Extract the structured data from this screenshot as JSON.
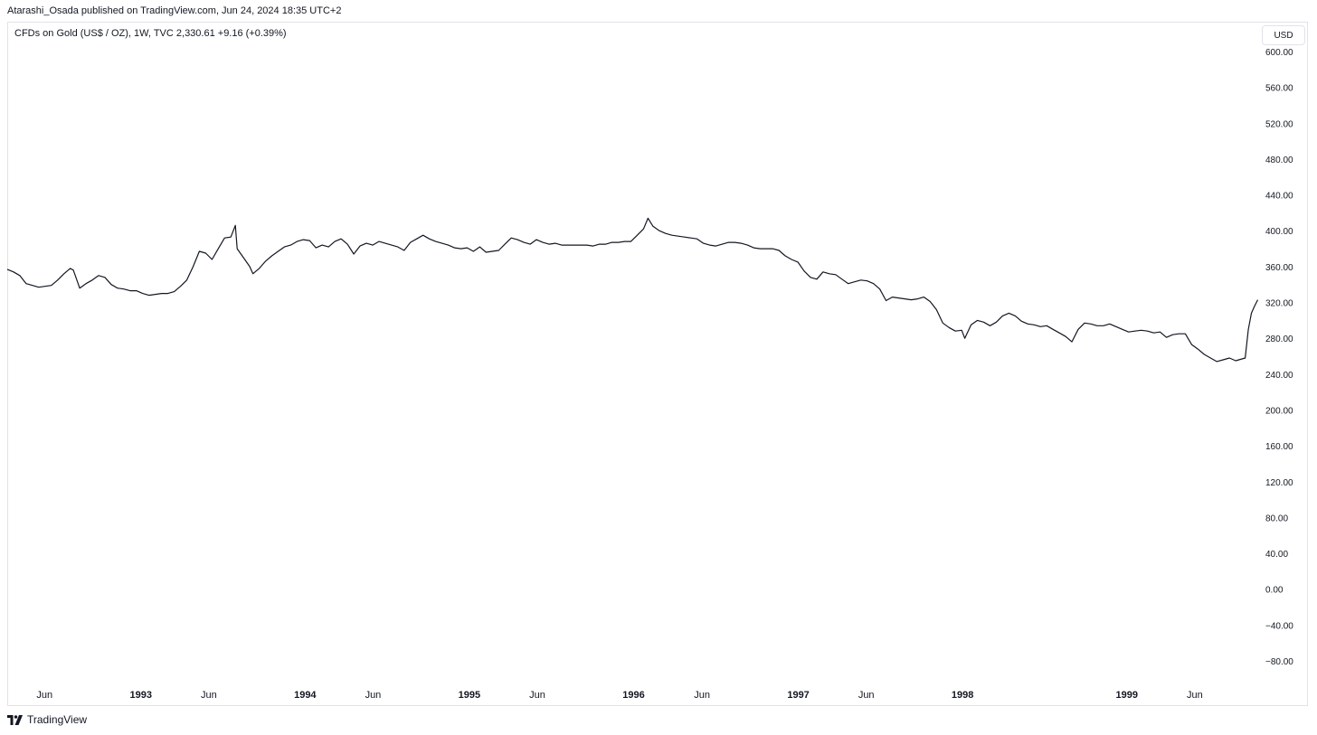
{
  "header": {
    "published_text": "Atarashi_Osada published on TradingView.com, Jun 24, 2024 18:35 UTC+2"
  },
  "legend": {
    "text": "CFDs on Gold (US$ / OZ), 1W, TVC  2,330.61  +9.16 (+0.39%)"
  },
  "price_scale": {
    "currency_label": "USD"
  },
  "footer": {
    "brand": "TradingView",
    "logo_icon": "tradingview-logo-icon"
  },
  "colors": {
    "line": "#131722",
    "axis_text": "#131722",
    "border": "#e0e3eb"
  },
  "chart_data": {
    "type": "line",
    "title": "CFDs on Gold (US$ / OZ), 1W, TVC",
    "xlabel": "",
    "ylabel": "",
    "ylim": [
      -80,
      600
    ],
    "xlim": [
      "1992-03-10",
      "1999-10-20"
    ],
    "grid": false,
    "y_ticks": [
      "600.00",
      "560.00",
      "520.00",
      "480.00",
      "440.00",
      "400.00",
      "360.00",
      "320.00",
      "280.00",
      "240.00",
      "200.00",
      "160.00",
      "120.00",
      "80.00",
      "40.00",
      "0.00",
      "−40.00",
      "−80.00"
    ],
    "x_ticks": [
      {
        "label": "Jun",
        "date": "1992-06-01"
      },
      {
        "label": "1993",
        "date": "1993-01-01"
      },
      {
        "label": "Jun",
        "date": "1993-06-01"
      },
      {
        "label": "1994",
        "date": "1994-01-01"
      },
      {
        "label": "Jun",
        "date": "1994-06-01"
      },
      {
        "label": "1995",
        "date": "1995-01-01"
      },
      {
        "label": "Jun",
        "date": "1995-06-01"
      },
      {
        "label": "1996",
        "date": "1996-01-01"
      },
      {
        "label": "Jun",
        "date": "1996-06-01"
      },
      {
        "label": "1997",
        "date": "1997-01-01"
      },
      {
        "label": "Jun",
        "date": "1997-06-01"
      },
      {
        "label": "1998",
        "date": "1998-01-01"
      },
      {
        "label": "1999",
        "date": "1999-01-01"
      },
      {
        "label": "Jun",
        "date": "1999-06-01"
      }
    ],
    "series": [
      {
        "values": [
          [
            "1992-03-10",
            357
          ],
          [
            "1992-03-24",
            354
          ],
          [
            "1992-04-07",
            350
          ],
          [
            "1992-04-21",
            341
          ],
          [
            "1992-05-05",
            339
          ],
          [
            "1992-05-19",
            337
          ],
          [
            "1992-06-02",
            338
          ],
          [
            "1992-06-16",
            339
          ],
          [
            "1992-06-30",
            345
          ],
          [
            "1992-07-14",
            352
          ],
          [
            "1992-07-28",
            358
          ],
          [
            "1992-08-04",
            356
          ],
          [
            "1992-08-18",
            336
          ],
          [
            "1992-09-01",
            341
          ],
          [
            "1992-09-15",
            345
          ],
          [
            "1992-09-29",
            350
          ],
          [
            "1992-10-13",
            348
          ],
          [
            "1992-10-27",
            340
          ],
          [
            "1992-11-10",
            336
          ],
          [
            "1992-11-24",
            335
          ],
          [
            "1992-12-08",
            333
          ],
          [
            "1992-12-22",
            333
          ],
          [
            "1993-01-05",
            330
          ],
          [
            "1993-01-19",
            328
          ],
          [
            "1993-02-02",
            329
          ],
          [
            "1993-02-16",
            330
          ],
          [
            "1993-03-02",
            330
          ],
          [
            "1993-03-16",
            332
          ],
          [
            "1993-03-30",
            338
          ],
          [
            "1993-04-13",
            345
          ],
          [
            "1993-04-27",
            360
          ],
          [
            "1993-05-11",
            377
          ],
          [
            "1993-05-25",
            375
          ],
          [
            "1993-06-08",
            368
          ],
          [
            "1993-06-22",
            380
          ],
          [
            "1993-07-06",
            392
          ],
          [
            "1993-07-20",
            393
          ],
          [
            "1993-07-30",
            406
          ],
          [
            "1993-08-03",
            380
          ],
          [
            "1993-08-17",
            370
          ],
          [
            "1993-08-31",
            360
          ],
          [
            "1993-09-07",
            352
          ],
          [
            "1993-09-21",
            358
          ],
          [
            "1993-10-05",
            366
          ],
          [
            "1993-10-19",
            372
          ],
          [
            "1993-11-02",
            377
          ],
          [
            "1993-11-16",
            382
          ],
          [
            "1993-11-30",
            384
          ],
          [
            "1993-12-14",
            388
          ],
          [
            "1993-12-28",
            390
          ],
          [
            "1994-01-11",
            389
          ],
          [
            "1994-01-25",
            381
          ],
          [
            "1994-02-08",
            384
          ],
          [
            "1994-02-22",
            382
          ],
          [
            "1994-03-08",
            388
          ],
          [
            "1994-03-22",
            391
          ],
          [
            "1994-04-05",
            385
          ],
          [
            "1994-04-19",
            374
          ],
          [
            "1994-05-03",
            383
          ],
          [
            "1994-05-17",
            386
          ],
          [
            "1994-05-31",
            384
          ],
          [
            "1994-06-14",
            388
          ],
          [
            "1994-06-28",
            386
          ],
          [
            "1994-07-12",
            384
          ],
          [
            "1994-07-26",
            382
          ],
          [
            "1994-08-09",
            378
          ],
          [
            "1994-08-23",
            387
          ],
          [
            "1994-09-06",
            391
          ],
          [
            "1994-09-20",
            395
          ],
          [
            "1994-10-04",
            391
          ],
          [
            "1994-10-18",
            388
          ],
          [
            "1994-11-01",
            386
          ],
          [
            "1994-11-15",
            384
          ],
          [
            "1994-11-29",
            381
          ],
          [
            "1994-12-13",
            380
          ],
          [
            "1994-12-27",
            381
          ],
          [
            "1995-01-10",
            377
          ],
          [
            "1995-01-24",
            382
          ],
          [
            "1995-02-07",
            376
          ],
          [
            "1995-02-21",
            377
          ],
          [
            "1995-03-07",
            378
          ],
          [
            "1995-03-21",
            385
          ],
          [
            "1995-04-04",
            392
          ],
          [
            "1995-04-18",
            390
          ],
          [
            "1995-05-02",
            387
          ],
          [
            "1995-05-16",
            385
          ],
          [
            "1995-05-30",
            390
          ],
          [
            "1995-06-13",
            387
          ],
          [
            "1995-06-27",
            385
          ],
          [
            "1995-07-11",
            386
          ],
          [
            "1995-07-25",
            384
          ],
          [
            "1995-08-08",
            384
          ],
          [
            "1995-08-22",
            384
          ],
          [
            "1995-09-05",
            384
          ],
          [
            "1995-09-19",
            384
          ],
          [
            "1995-10-03",
            383
          ],
          [
            "1995-10-17",
            385
          ],
          [
            "1995-10-31",
            385
          ],
          [
            "1995-11-14",
            387
          ],
          [
            "1995-11-28",
            387
          ],
          [
            "1995-12-12",
            388
          ],
          [
            "1995-12-26",
            388
          ],
          [
            "1996-01-09",
            395
          ],
          [
            "1996-01-23",
            402
          ],
          [
            "1996-02-02",
            414
          ],
          [
            "1996-02-13",
            405
          ],
          [
            "1996-02-27",
            400
          ],
          [
            "1996-03-12",
            397
          ],
          [
            "1996-03-26",
            395
          ],
          [
            "1996-04-09",
            394
          ],
          [
            "1996-04-23",
            393
          ],
          [
            "1996-05-07",
            392
          ],
          [
            "1996-05-21",
            391
          ],
          [
            "1996-06-04",
            386
          ],
          [
            "1996-06-18",
            384
          ],
          [
            "1996-07-02",
            383
          ],
          [
            "1996-07-16",
            385
          ],
          [
            "1996-07-30",
            387
          ],
          [
            "1996-08-13",
            387
          ],
          [
            "1996-08-27",
            386
          ],
          [
            "1996-09-10",
            384
          ],
          [
            "1996-09-24",
            381
          ],
          [
            "1996-10-08",
            380
          ],
          [
            "1996-10-22",
            380
          ],
          [
            "1996-11-05",
            380
          ],
          [
            "1996-11-19",
            378
          ],
          [
            "1996-12-03",
            372
          ],
          [
            "1996-12-17",
            368
          ],
          [
            "1996-12-31",
            365
          ],
          [
            "1997-01-14",
            355
          ],
          [
            "1997-01-28",
            348
          ],
          [
            "1997-02-11",
            346
          ],
          [
            "1997-02-25",
            354
          ],
          [
            "1997-03-11",
            352
          ],
          [
            "1997-03-25",
            351
          ],
          [
            "1997-04-08",
            346
          ],
          [
            "1997-04-22",
            341
          ],
          [
            "1997-05-06",
            343
          ],
          [
            "1997-05-20",
            345
          ],
          [
            "1997-06-03",
            344
          ],
          [
            "1997-06-17",
            341
          ],
          [
            "1997-07-01",
            335
          ],
          [
            "1997-07-15",
            322
          ],
          [
            "1997-07-29",
            326
          ],
          [
            "1997-08-12",
            325
          ],
          [
            "1997-08-26",
            324
          ],
          [
            "1997-09-09",
            323
          ],
          [
            "1997-09-23",
            324
          ],
          [
            "1997-10-07",
            326
          ],
          [
            "1997-10-21",
            321
          ],
          [
            "1997-11-04",
            312
          ],
          [
            "1997-11-18",
            297
          ],
          [
            "1997-12-02",
            292
          ],
          [
            "1997-12-16",
            288
          ],
          [
            "1997-12-30",
            289
          ],
          [
            "1998-01-06",
            280
          ],
          [
            "1998-01-20",
            295
          ],
          [
            "1998-02-03",
            300
          ],
          [
            "1998-02-17",
            298
          ],
          [
            "1998-03-03",
            294
          ],
          [
            "1998-03-17",
            298
          ],
          [
            "1998-03-31",
            305
          ],
          [
            "1998-04-14",
            308
          ],
          [
            "1998-04-28",
            305
          ],
          [
            "1998-05-12",
            299
          ],
          [
            "1998-05-26",
            296
          ],
          [
            "1998-06-09",
            295
          ],
          [
            "1998-06-23",
            293
          ],
          [
            "1998-07-07",
            294
          ],
          [
            "1998-07-21",
            290
          ],
          [
            "1998-08-04",
            286
          ],
          [
            "1998-08-18",
            282
          ],
          [
            "1998-09-01",
            276
          ],
          [
            "1998-09-15",
            290
          ],
          [
            "1998-09-29",
            297
          ],
          [
            "1998-10-13",
            296
          ],
          [
            "1998-10-27",
            294
          ],
          [
            "1998-11-10",
            294
          ],
          [
            "1998-11-24",
            296
          ],
          [
            "1998-12-08",
            293
          ],
          [
            "1998-12-22",
            290
          ],
          [
            "1999-01-05",
            287
          ],
          [
            "1999-01-19",
            288
          ],
          [
            "1999-02-02",
            289
          ],
          [
            "1999-02-16",
            288
          ],
          [
            "1999-03-02",
            286
          ],
          [
            "1999-03-16",
            287
          ],
          [
            "1999-03-30",
            281
          ],
          [
            "1999-04-13",
            284
          ],
          [
            "1999-04-27",
            285
          ],
          [
            "1999-05-11",
            285
          ],
          [
            "1999-05-25",
            273
          ],
          [
            "1999-06-08",
            268
          ],
          [
            "1999-06-22",
            262
          ],
          [
            "1999-07-06",
            258
          ],
          [
            "1999-07-20",
            254
          ],
          [
            "1999-08-03",
            256
          ],
          [
            "1999-08-17",
            258
          ],
          [
            "1999-08-31",
            255
          ],
          [
            "1999-09-14",
            257
          ],
          [
            "1999-09-21",
            258
          ],
          [
            "1999-09-28",
            290
          ],
          [
            "1999-10-05",
            308
          ],
          [
            "1999-10-12",
            316
          ],
          [
            "1999-10-19",
            323
          ]
        ]
      }
    ]
  }
}
